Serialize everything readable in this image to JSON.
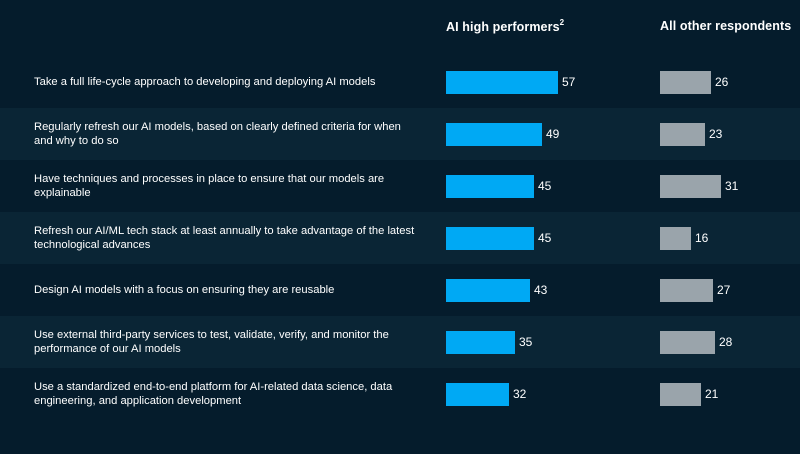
{
  "chart_data": {
    "type": "bar",
    "orientation": "horizontal",
    "categories": [
      "Take a full life-cycle approach to developing and deploying AI models",
      "Regularly refresh our AI models, based on clearly defined criteria for when and why to do so",
      "Have techniques and processes in place to ensure that our models are explainable",
      "Refresh our AI/ML tech stack at least annually to take advantage of the latest technological advances",
      "Design AI models with a focus on ensuring they are reusable",
      "Use external third-party services to test, validate, verify, and monitor the performance of our AI models",
      "Use a standardized end-to-end platform for AI-related data science, data engineering, and application development"
    ],
    "series": [
      {
        "name": "AI high performers",
        "superscript": "2",
        "color": "#00a9f4",
        "values": [
          57,
          49,
          45,
          45,
          43,
          35,
          32
        ]
      },
      {
        "name": "All other respondents",
        "color": "#9aa4ab",
        "values": [
          26,
          23,
          31,
          16,
          27,
          28,
          21
        ]
      }
    ],
    "grid": false,
    "legend": "top"
  },
  "colors": {
    "background": "#051c2c",
    "row_shade": "#0a2535"
  }
}
